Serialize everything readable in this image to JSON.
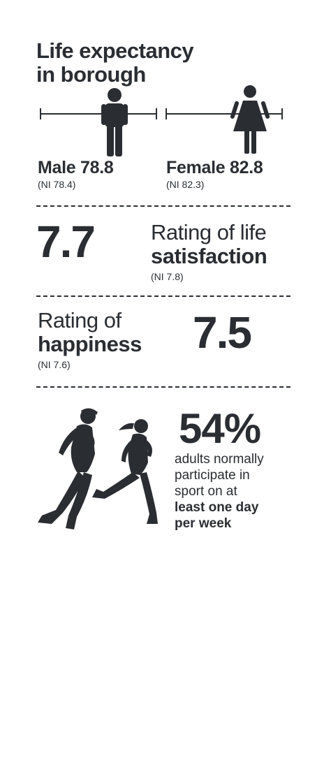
{
  "title": {
    "line1": "Life expectancy",
    "line2": "in borough"
  },
  "life_expectancy": {
    "male": {
      "label": "Male",
      "value": "78.8",
      "ni": "(NI 78.4)"
    },
    "female": {
      "label": "Female",
      "value": "82.8",
      "ni": "(NI 82.3)"
    }
  },
  "life_satisfaction": {
    "value": "7.7",
    "label_line1": "Rating of life",
    "label_line2": "satisfaction",
    "ni": "(NI 7.8)"
  },
  "happiness": {
    "value": "7.5",
    "label_line1": "Rating of",
    "label_line2": "happiness",
    "ni": "(NI 7.6)"
  },
  "sport": {
    "percent": "54%",
    "line1": "adults normally",
    "line2": "participate in",
    "line3": "sport on at",
    "line4": "least one day",
    "line5": "per week"
  },
  "colors": {
    "text": "#2a2e33",
    "background": "#ffffff"
  },
  "icons": [
    "male-figure-icon",
    "female-figure-icon",
    "runners-icon"
  ]
}
